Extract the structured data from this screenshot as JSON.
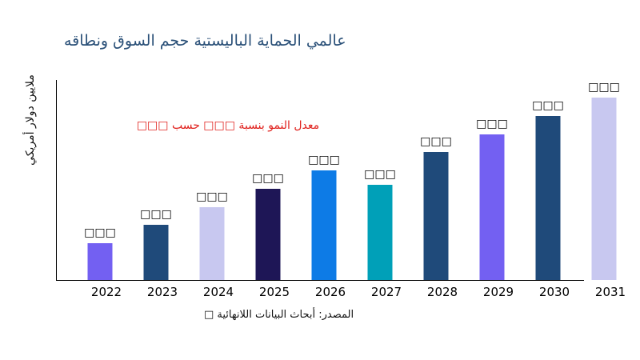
{
  "chart_data": {
    "type": "bar",
    "title": "عالمي الحماية الباليستية حجم السوق ونطاقه",
    "ylabel": "ملايين دولار أمريكي",
    "xlabel": "",
    "categories": [
      "2022",
      "2023",
      "2024",
      "2025",
      "2026",
      "2027",
      "2028",
      "2029",
      "2030",
      "2031"
    ],
    "values": [
      46,
      69,
      91,
      114,
      137,
      119,
      160,
      182,
      205,
      228
    ],
    "data_labels": [
      "□□□",
      "□□□",
      "□□□",
      "□□□",
      "□□□",
      "□□□",
      "□□□",
      "□□□",
      "□□□",
      "□□□"
    ],
    "colors": [
      "#7360f2",
      "#1f4a7a",
      "#c8c8f0",
      "#1e1656",
      "#0d7be6",
      "#00a0b8",
      "#1f4a7a",
      "#7360f2",
      "#1f4a7a",
      "#c8c8f0"
    ],
    "annotation": "معدل النمو بنسبة □□□ حسب □□□",
    "annotation_color": "#e0201c",
    "grid": false,
    "legend": "none",
    "source": "المصدر: أبحاث البيانات اللانهائية □"
  }
}
